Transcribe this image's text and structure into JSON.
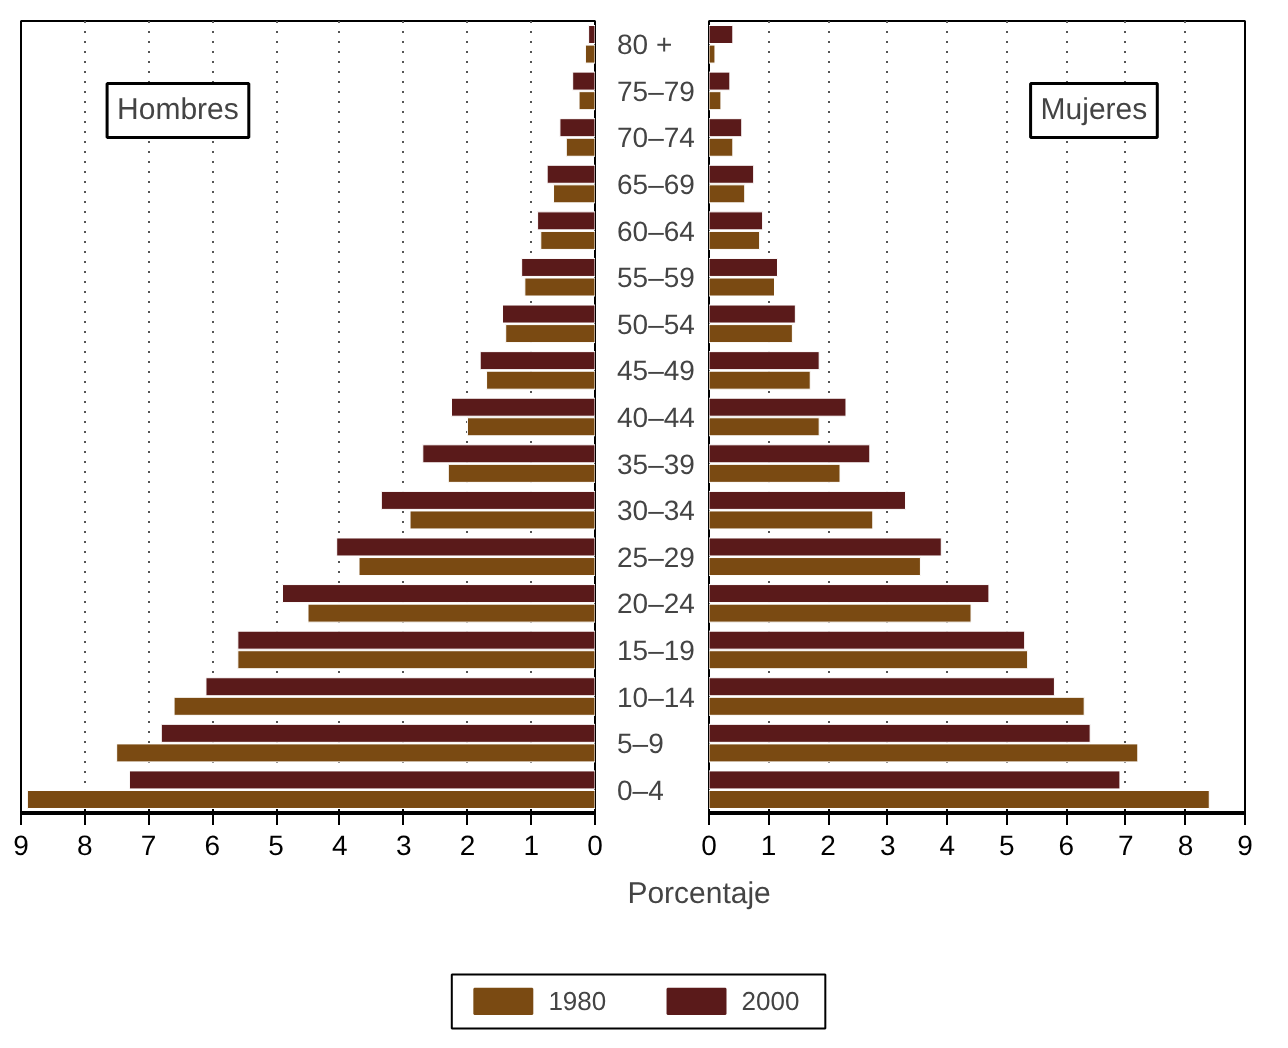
{
  "chart_data": [
    {
      "type": "bar",
      "orientation": "horizontal",
      "categories": [
        "80 +",
        "75–79",
        "70–74",
        "65–69",
        "60–64",
        "55–59",
        "50–54",
        "45–49",
        "40–44",
        "35–39",
        "30–34",
        "25–29",
        "20–24",
        "15–19",
        "10–14",
        "5–9",
        "0–4"
      ],
      "series": [
        {
          "name": "1980",
          "color": "#7a4a12",
          "values": [
            0.15,
            0.25,
            0.45,
            0.65,
            0.85,
            1.1,
            1.4,
            1.7,
            2.0,
            2.3,
            2.9,
            3.7,
            4.5,
            5.6,
            6.6,
            7.5,
            8.9
          ]
        },
        {
          "name": "2000",
          "color": "#5a1a1a",
          "values": [
            0.1,
            0.35,
            0.55,
            0.75,
            0.9,
            1.15,
            1.45,
            1.8,
            2.25,
            2.7,
            3.35,
            4.05,
            4.9,
            5.6,
            6.1,
            6.8,
            7.3
          ]
        }
      ],
      "xlim": [
        9,
        0
      ],
      "xticks": [
        0,
        1,
        2,
        3,
        4,
        5,
        6,
        7,
        8,
        9
      ],
      "grid": "x",
      "annotations": [
        "Hombres"
      ],
      "xlabel": "Porcentaje",
      "legend": "bottom"
    },
    {
      "type": "bar",
      "orientation": "horizontal",
      "categories": [
        null,
        null,
        null,
        null,
        null,
        null,
        null,
        null,
        null,
        null,
        null,
        null,
        null,
        null,
        null,
        null,
        null
      ],
      "series": [
        {
          "color": "#7a4a12",
          "values": [
            0.1,
            0.2,
            0.4,
            0.6,
            0.85,
            1.1,
            1.4,
            1.7,
            1.85,
            2.2,
            2.75,
            3.55,
            4.4,
            5.35,
            6.3,
            7.2,
            8.4
          ]
        },
        {
          "color": "#5a1a1a",
          "values": [
            0.4,
            0.35,
            0.55,
            0.75,
            0.9,
            1.15,
            1.45,
            1.85,
            2.3,
            2.7,
            3.3,
            3.9,
            4.7,
            5.3,
            5.8,
            6.4,
            6.9
          ]
        }
      ],
      "xlim": [
        0,
        9
      ],
      "xticks": [
        0,
        1,
        2,
        3,
        4,
        5,
        6,
        7,
        8,
        9
      ],
      "grid": "x",
      "tick_labels": "x",
      "annotations": [
        "Mujeres"
      ]
    }
  ]
}
